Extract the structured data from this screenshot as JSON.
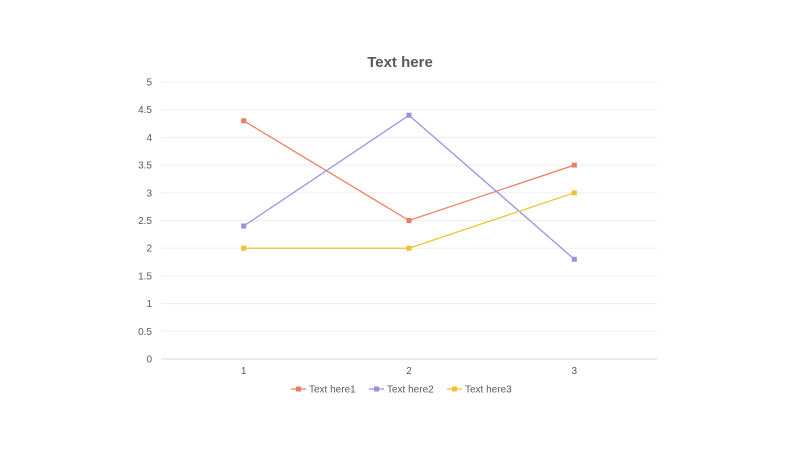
{
  "chart_data": {
    "type": "line",
    "title": "Text here",
    "xlabel": "",
    "ylabel": "",
    "categories": [
      "1",
      "2",
      "3"
    ],
    "ylim": [
      0,
      5
    ],
    "yticks": [
      "0",
      "0.5",
      "1",
      "1.5",
      "2",
      "2.5",
      "3",
      "3.5",
      "4",
      "4.5",
      "5"
    ],
    "grid": true,
    "legend_position": "bottom",
    "series": [
      {
        "name": "Text here1",
        "values": [
          4.3,
          2.5,
          3.5
        ],
        "color": "#ED7D61"
      },
      {
        "name": "Text here2",
        "values": [
          2.4,
          4.4,
          1.8
        ],
        "color": "#9B8FE3"
      },
      {
        "name": "Text here3",
        "values": [
          2.0,
          2.0,
          3.0
        ],
        "color": "#F2C12E"
      }
    ]
  }
}
